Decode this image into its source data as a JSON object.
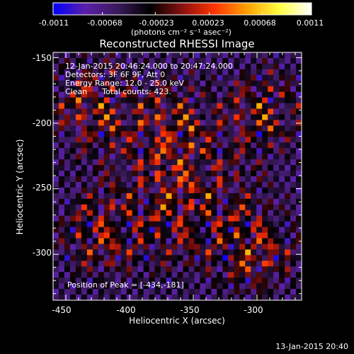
{
  "chart_data": {
    "type": "heatmap",
    "title": "Reconstructed RHESSI Image",
    "xlabel": "Heliocentric X (arcsec)",
    "ylabel": "Heliocentric Y (arcsec)",
    "xlim": [
      -460,
      -265
    ],
    "ylim": [
      -335,
      -146
    ],
    "xticks": [
      "-450",
      "-400",
      "-350",
      "-300"
    ],
    "xtick_values": [
      -450,
      -400,
      -350,
      -300
    ],
    "yticks": [
      "-150",
      "-200",
      "-250",
      "-300"
    ],
    "ytick_values": [
      -150,
      -200,
      -250,
      -300
    ],
    "colorbar": {
      "min": -0.0011,
      "max": 0.0011,
      "ticks": [
        "-0.0011",
        "-0.00068",
        "-0.00023",
        "0.00023",
        "0.00068",
        "0.0011"
      ],
      "tick_values": [
        -0.0011,
        -0.00068,
        -0.00023,
        0.00023,
        0.00068,
        0.0011
      ],
      "units": "(photons cm⁻² s⁻¹ asec⁻²)",
      "colors": [
        "#0000ff",
        "#5a1fa8",
        "#3a1a5a",
        "#000000",
        "#8a1010",
        "#ff3300",
        "#ffa000",
        "#ffff40",
        "#ffffff"
      ]
    },
    "annotations": {
      "time": "12-Jan-2015 20:46:24.000 to 20:47:24.000",
      "detectors": "Detectors: 3F 6F 9F, Att 0",
      "energy": "Energy Range: 12.0 - 25.0 keV",
      "clean": "Clean      Total counts: 423.",
      "peak": "Position of Peak = [-434,-181]"
    }
  },
  "footer": {
    "timestamp": "13-Jan-2015 20:40"
  }
}
